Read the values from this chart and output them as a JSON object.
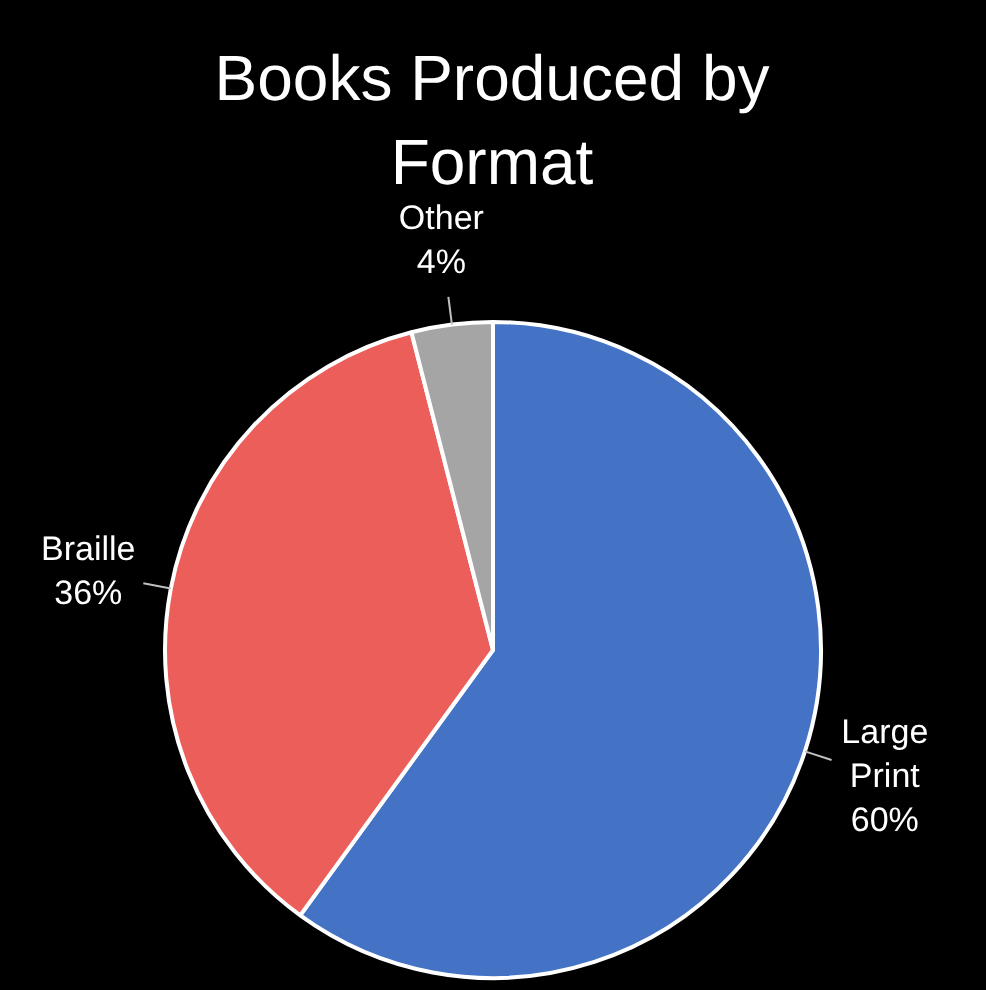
{
  "chart_data": {
    "type": "pie",
    "title": "Books Produced by Format",
    "categories": [
      "Large Print",
      "Braille",
      "Other"
    ],
    "values": [
      60,
      36,
      4
    ],
    "colors": [
      "#4472c4",
      "#eb5e5a",
      "#a5a5a5"
    ],
    "value_labels": [
      "60%",
      "36%",
      "4%"
    ],
    "legend": false
  }
}
